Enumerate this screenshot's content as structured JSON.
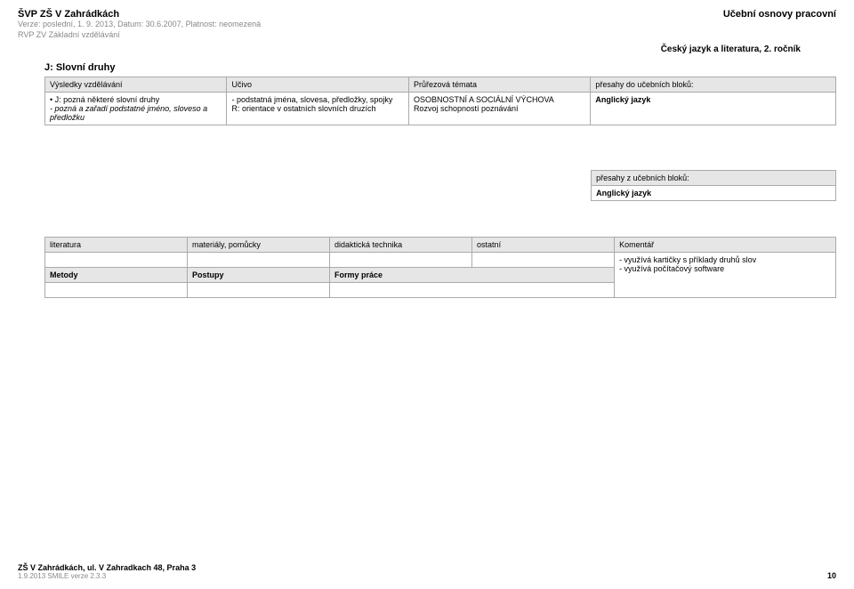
{
  "header": {
    "title": "ŠVP ZŠ V Zahrádkách",
    "line1": "Verze: poslední, 1. 9. 2013, Datum: 30.6.2007, Platnost: neomezená",
    "line2": "RVP ZV Základní vzdělávání",
    "right": "Učební osnovy pracovní",
    "subject": "Český jazyk a literatura, 2. ročník"
  },
  "section": {
    "title": "J: Slovní druhy"
  },
  "table": {
    "headers": [
      "Výsledky vzdělávání",
      "Učivo",
      "Průřezová témata",
      "přesahy do učebních bloků:"
    ],
    "row": {
      "c1_top": "J: pozná některé slovní druhy",
      "c1_sub": " - pozná a zařadí podstatné jméno, sloveso a předložku",
      "c2_a": "- podstatná jména, slovesa, předložky, spojky",
      "c2_b": "R: orientace v ostatních slovních druzích",
      "c3_a": "OSOBNOSTNÍ A SOCIÁLNÍ VÝCHOVA",
      "c3_b": "   Rozvoj schopností poznávání",
      "c4": "Anglický jazyk"
    }
  },
  "overlap": {
    "header": "přesahy z učebních bloků:",
    "value": "Anglický jazyk"
  },
  "lower": {
    "headers": [
      "literatura",
      "materiály, pomůcky",
      "didaktická technika",
      "ostatní",
      "Komentář"
    ],
    "comment1": "- využívá kartičky s příklady druhů slov",
    "comment2": "- využívá počítačový software",
    "row2": [
      "Metody",
      "Postupy",
      "Formy práce"
    ]
  },
  "footer": {
    "addr": "ZŠ V Zahrádkách, ul. V Zahradkach 48, Praha 3",
    "meta": "1.9.2013 SMILE verze 2.3.3",
    "page": "10"
  }
}
